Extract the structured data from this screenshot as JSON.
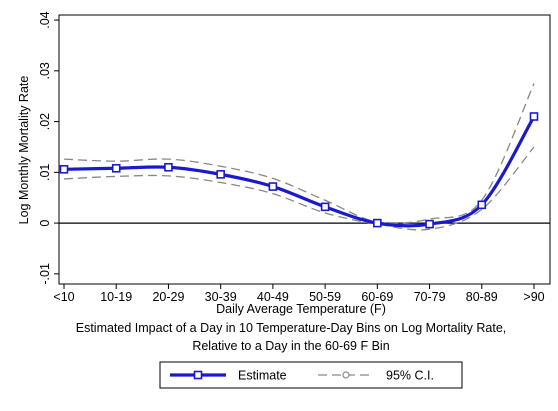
{
  "chart_data": {
    "type": "line",
    "title": "Estimated Impact of a Day in 10 Temperature-Day Bins on Log Mortality Rate,",
    "subtitle": "Relative to a Day in the 60-69 F Bin",
    "xlabel": "Daily Average Temperature (F)",
    "ylabel": "Log Monthly Mortality Rate",
    "categories": [
      "<10",
      "10-19",
      "20-29",
      "30-39",
      "40-49",
      "50-59",
      "60-69",
      "70-79",
      "80-89",
      ">90"
    ],
    "yticks": [
      -0.01,
      0,
      0.01,
      0.02,
      0.03,
      0.04
    ],
    "ytick_labels": [
      "-.01",
      "0",
      ".01",
      ".02",
      ".03",
      ".04"
    ],
    "ylim": [
      -0.012,
      0.041
    ],
    "grid": false,
    "reference_line": 0,
    "legend_position": "bottom",
    "series": [
      {
        "name": "Estimate",
        "color": "#1a1acc",
        "marker": "square",
        "values": [
          0.0106,
          0.0108,
          0.011,
          0.0096,
          0.0072,
          0.0032,
          0.0,
          -0.0002,
          0.0036,
          0.021
        ]
      },
      {
        "name": "95% C.I.",
        "color": "#888888",
        "marker": "circle",
        "style": "dashed",
        "upper": [
          0.0126,
          0.0122,
          0.0126,
          0.0112,
          0.0088,
          0.0045,
          0.0002,
          0.0008,
          0.0045,
          0.0275
        ],
        "lower": [
          0.0087,
          0.0092,
          0.0093,
          0.008,
          0.0058,
          0.002,
          -0.0002,
          -0.0012,
          0.0027,
          0.015
        ]
      }
    ]
  }
}
